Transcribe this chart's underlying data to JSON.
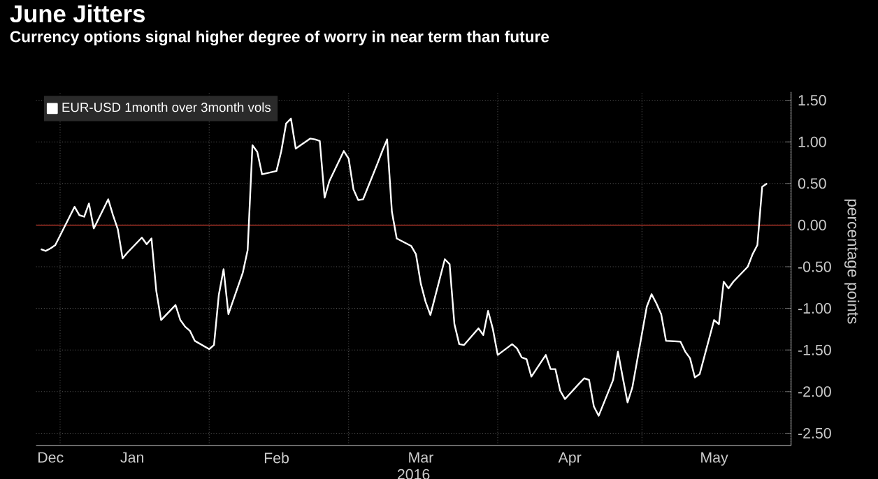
{
  "chart_data": {
    "type": "line",
    "title": "June Jitters",
    "subtitle": "Currency options signal higher degree of worry in near term than future",
    "xlabel": "2016",
    "ylabel": "percentage points",
    "x": [
      "2015-12-28",
      "2015-12-29",
      "2015-12-30",
      "2015-12-31",
      "2016-01-04",
      "2016-01-05",
      "2016-01-06",
      "2016-01-07",
      "2016-01-08",
      "2016-01-11",
      "2016-01-12",
      "2016-01-13",
      "2016-01-14",
      "2016-01-15",
      "2016-01-18",
      "2016-01-19",
      "2016-01-20",
      "2016-01-21",
      "2016-01-22",
      "2016-01-25",
      "2016-01-26",
      "2016-01-27",
      "2016-01-28",
      "2016-01-29",
      "2016-02-01",
      "2016-02-02",
      "2016-02-03",
      "2016-02-04",
      "2016-02-05",
      "2016-02-08",
      "2016-02-09",
      "2016-02-10",
      "2016-02-11",
      "2016-02-12",
      "2016-02-15",
      "2016-02-16",
      "2016-02-17",
      "2016-02-18",
      "2016-02-19",
      "2016-02-22",
      "2016-02-23",
      "2016-02-24",
      "2016-02-25",
      "2016-02-26",
      "2016-02-29",
      "2016-03-01",
      "2016-03-02",
      "2016-03-03",
      "2016-03-04",
      "2016-03-07",
      "2016-03-08",
      "2016-03-09",
      "2016-03-10",
      "2016-03-11",
      "2016-03-14",
      "2016-03-15",
      "2016-03-16",
      "2016-03-17",
      "2016-03-18",
      "2016-03-21",
      "2016-03-22",
      "2016-03-23",
      "2016-03-24",
      "2016-03-25",
      "2016-03-28",
      "2016-03-29",
      "2016-03-30",
      "2016-03-31",
      "2016-04-01",
      "2016-04-04",
      "2016-04-05",
      "2016-04-06",
      "2016-04-07",
      "2016-04-08",
      "2016-04-11",
      "2016-04-12",
      "2016-04-13",
      "2016-04-14",
      "2016-04-15",
      "2016-04-18",
      "2016-04-19",
      "2016-04-20",
      "2016-04-21",
      "2016-04-22",
      "2016-04-25",
      "2016-04-26",
      "2016-04-27",
      "2016-04-28",
      "2016-04-29",
      "2016-05-02",
      "2016-05-03",
      "2016-05-04",
      "2016-05-05",
      "2016-05-06",
      "2016-05-09",
      "2016-05-10",
      "2016-05-11",
      "2016-05-12",
      "2016-05-13",
      "2016-05-16",
      "2016-05-17",
      "2016-05-18",
      "2016-05-19",
      "2016-05-20",
      "2016-05-23",
      "2016-05-24",
      "2016-05-25",
      "2016-05-26",
      "2016-05-27"
    ],
    "series": [
      {
        "name": "EUR-USD 1month over 3month vols",
        "color": "#ffffff",
        "values": [
          -0.29,
          -0.31,
          -0.28,
          -0.24,
          0.22,
          0.12,
          0.1,
          0.26,
          -0.04,
          0.31,
          0.12,
          -0.05,
          -0.4,
          -0.33,
          -0.15,
          -0.23,
          -0.16,
          -0.79,
          -1.14,
          -0.96,
          -1.14,
          -1.22,
          -1.27,
          -1.39,
          -1.49,
          -1.44,
          -0.84,
          -0.53,
          -1.07,
          -0.57,
          -0.3,
          0.96,
          0.88,
          0.61,
          0.65,
          0.89,
          1.22,
          1.28,
          0.92,
          1.04,
          1.03,
          1.01,
          0.33,
          0.53,
          0.89,
          0.8,
          0.43,
          0.3,
          0.31,
          0.74,
          0.89,
          1.03,
          0.16,
          -0.16,
          -0.25,
          -0.35,
          -0.7,
          -0.92,
          -1.08,
          -0.41,
          -0.47,
          -1.19,
          -1.43,
          -1.44,
          -1.24,
          -1.32,
          -1.03,
          -1.25,
          -1.56,
          -1.43,
          -1.48,
          -1.59,
          -1.61,
          -1.82,
          -1.56,
          -1.73,
          -1.73,
          -1.99,
          -2.09,
          -1.9,
          -1.84,
          -1.86,
          -2.18,
          -2.29,
          -1.86,
          -1.52,
          -1.83,
          -2.13,
          -1.95,
          -0.98,
          -0.83,
          -0.94,
          -1.07,
          -1.39,
          -1.4,
          -1.52,
          -1.6,
          -1.83,
          -1.79,
          -1.14,
          -1.19,
          -0.68,
          -0.76,
          -0.68,
          -0.5,
          -0.35,
          -0.24,
          0.46,
          0.5
        ]
      }
    ],
    "xlim": [
      "2015-12-27",
      "2016-06-01"
    ],
    "xticks": [
      {
        "value": "2015-12-30",
        "label": "Dec"
      },
      {
        "value": "2016-01-16",
        "label": "Jan"
      },
      {
        "value": "2016-02-15",
        "label": "Feb"
      },
      {
        "value": "2016-03-16",
        "label": "Mar"
      },
      {
        "value": "2016-04-16",
        "label": "Apr"
      },
      {
        "value": "2016-05-16",
        "label": "May"
      },
      {
        "value": "2016-01-01",
        "label": null
      },
      {
        "value": "2016-02-01",
        "label": null
      },
      {
        "value": "2016-03-01",
        "label": null
      },
      {
        "value": "2016-04-01",
        "label": null
      },
      {
        "value": "2016-05-01",
        "label": null
      },
      {
        "value": "2016-06-01",
        "label": null
      }
    ],
    "ylim": [
      -2.65,
      1.6
    ],
    "yticks": [
      {
        "value": -2.5,
        "label": "-2.50"
      },
      {
        "value": -2,
        "label": "-2.00"
      },
      {
        "value": -1.5,
        "label": "-1.50"
      },
      {
        "value": -1,
        "label": "-1.00"
      },
      {
        "value": -0.5,
        "label": "-0.50"
      },
      {
        "value": 0,
        "label": "0.00"
      },
      {
        "value": 0.5,
        "label": "0.50"
      },
      {
        "value": 1,
        "label": "1.00"
      },
      {
        "value": 1.5,
        "label": "1.50"
      }
    ],
    "ref_lines": [
      {
        "axis": "y",
        "value": 0,
        "color": "#c0392b",
        "line_style": "solid"
      }
    ],
    "grid": true,
    "legend": "top left",
    "marker": "none",
    "line_style": "solid"
  }
}
